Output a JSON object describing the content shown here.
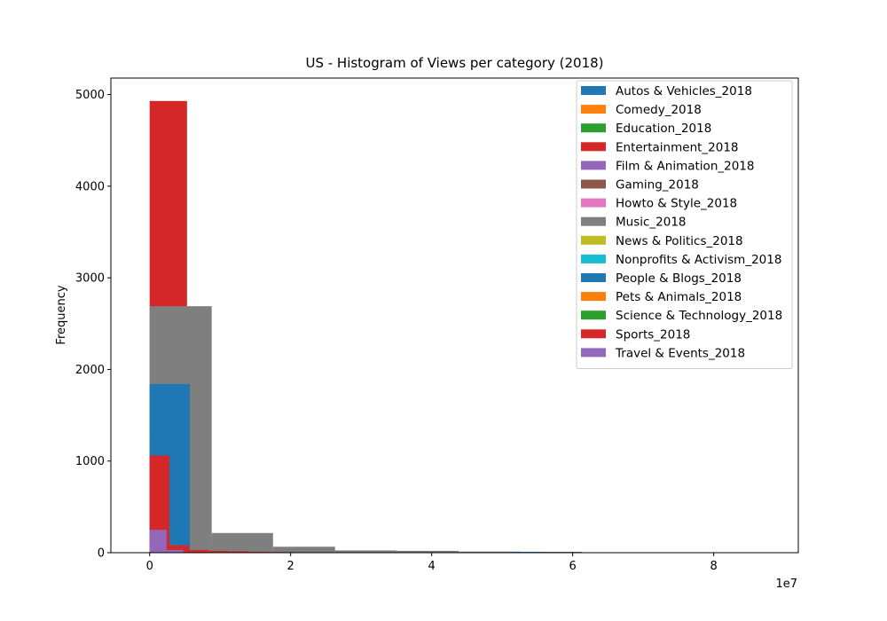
{
  "chart_data": {
    "type": "bar",
    "title": "US - Histogram of Views per category (2018)",
    "xlabel": "",
    "ylabel": "Frequency",
    "x_offset_label": "1e7",
    "xlim": [
      -0.55,
      9.2
    ],
    "ylim": [
      0,
      5180
    ],
    "xticks": [
      0,
      2,
      4,
      6,
      8
    ],
    "yticks": [
      0,
      1000,
      2000,
      3000,
      4000,
      5000
    ],
    "grid": false,
    "legend_position": "upper-right",
    "series": [
      {
        "name": "Autos & Vehicles_2018",
        "color": "#1f77b4",
        "bins": []
      },
      {
        "name": "Comedy_2018",
        "color": "#ff7f0e",
        "bins": []
      },
      {
        "name": "Education_2018",
        "color": "#2ca02c",
        "bins": [
          {
            "x0": 0.0,
            "x1": 0.21,
            "count": 1270
          }
        ]
      },
      {
        "name": "Entertainment_2018",
        "color": "#d62728",
        "bins": [
          {
            "x0": 0.0,
            "x1": 0.53,
            "count": 4930
          },
          {
            "x0": 0.53,
            "x1": 1.06,
            "count": 90
          }
        ]
      },
      {
        "name": "Film & Animation_2018",
        "color": "#9467bd",
        "bins": []
      },
      {
        "name": "Gaming_2018",
        "color": "#8c564b",
        "bins": []
      },
      {
        "name": "Howto & Style_2018",
        "color": "#e377c2",
        "bins": []
      },
      {
        "name": "Music_2018",
        "color": "#7f7f7f",
        "bins": [
          {
            "x0": 0.0,
            "x1": 0.88,
            "count": 2690
          },
          {
            "x0": 0.88,
            "x1": 1.75,
            "count": 215
          },
          {
            "x0": 1.75,
            "x1": 2.63,
            "count": 65
          },
          {
            "x0": 2.63,
            "x1": 3.5,
            "count": 25
          },
          {
            "x0": 3.5,
            "x1": 4.38,
            "count": 20
          },
          {
            "x0": 4.38,
            "x1": 5.26,
            "count": 12
          },
          {
            "x0": 5.26,
            "x1": 6.13,
            "count": 10
          },
          {
            "x0": 6.13,
            "x1": 7.0,
            "count": 4
          }
        ]
      },
      {
        "name": "News & Politics_2018",
        "color": "#bcbd22",
        "bins": [
          {
            "x0": 0.0,
            "x1": 0.12,
            "count": 140
          }
        ]
      },
      {
        "name": "Nonprofits & Activism_2018",
        "color": "#17becf",
        "bins": []
      },
      {
        "name": "People & Blogs_2018",
        "color": "#1f77b4",
        "bins": [
          {
            "x0": 0.0,
            "x1": 0.57,
            "count": 1840
          },
          {
            "x0": 5.1,
            "x1": 5.6,
            "count": 8
          }
        ]
      },
      {
        "name": "Pets & Animals_2018",
        "color": "#ff7f0e",
        "bins": []
      },
      {
        "name": "Science & Technology_2018",
        "color": "#2ca02c",
        "bins": [
          {
            "x0": 0.21,
            "x1": 0.42,
            "count": 85
          }
        ]
      },
      {
        "name": "Sports_2018",
        "color": "#d62728",
        "bins": [
          {
            "x0": 0.0,
            "x1": 0.28,
            "count": 1060
          },
          {
            "x0": 0.28,
            "x1": 0.56,
            "count": 80
          },
          {
            "x0": 0.56,
            "x1": 0.84,
            "count": 30
          },
          {
            "x0": 0.84,
            "x1": 1.12,
            "count": 20
          },
          {
            "x0": 1.12,
            "x1": 1.4,
            "count": 15
          },
          {
            "x0": 1.4,
            "x1": 1.68,
            "count": 10
          },
          {
            "x0": 1.68,
            "x1": 1.96,
            "count": 7
          },
          {
            "x0": 1.96,
            "x1": 2.24,
            "count": 5
          }
        ]
      },
      {
        "name": "Travel & Events_2018",
        "color": "#9467bd",
        "bins": [
          {
            "x0": 0.0,
            "x1": 0.24,
            "count": 250
          },
          {
            "x0": 0.24,
            "x1": 0.48,
            "count": 30
          }
        ]
      }
    ]
  }
}
